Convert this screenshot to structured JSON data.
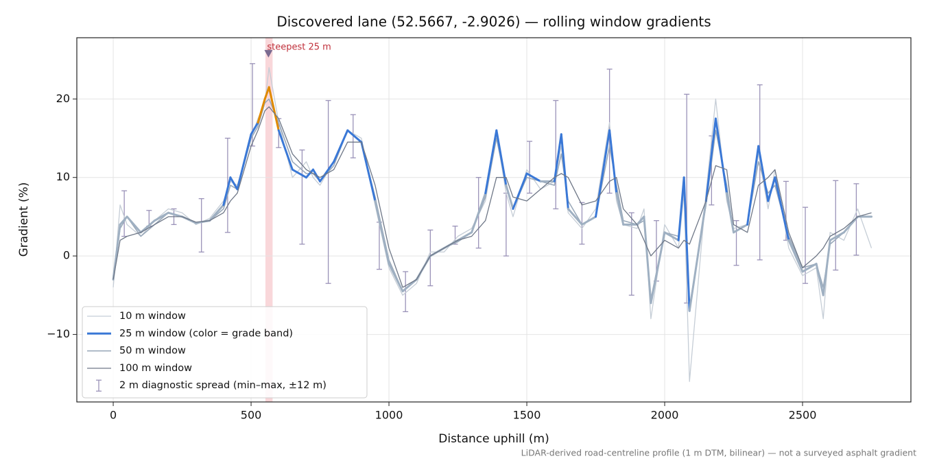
{
  "chart_data": {
    "type": "line",
    "title": "Discovered lane (52.5667, -2.9026) — rolling window gradients",
    "xlabel": "Distance uphill (m)",
    "ylabel": "Gradient (%)",
    "footnote": "LiDAR-derived road-centreline profile (1 m DTM, bilinear) — not a surveyed asphalt gradient",
    "xlim": [
      -132,
      2893
    ],
    "ylim": [
      -18.6,
      27.8
    ],
    "xticks": [
      0,
      500,
      1000,
      1500,
      2000,
      2500
    ],
    "yticks": [
      {
        "value": -10,
        "label": "−10"
      },
      0,
      10,
      20
    ],
    "grid": true,
    "legend": "lower left",
    "x": [
      0,
      25,
      50,
      100,
      150,
      200,
      250,
      300,
      350,
      400,
      425,
      450,
      500,
      525,
      550,
      565,
      600,
      650,
      700,
      725,
      750,
      800,
      850,
      900,
      950,
      1000,
      1050,
      1100,
      1150,
      1200,
      1250,
      1300,
      1350,
      1390,
      1425,
      1450,
      1500,
      1550,
      1600,
      1625,
      1650,
      1700,
      1750,
      1800,
      1825,
      1850,
      1900,
      1925,
      1950,
      2000,
      2050,
      2070,
      2090,
      2150,
      2185,
      2225,
      2250,
      2300,
      2340,
      2375,
      2400,
      2450,
      2500,
      2550,
      2575,
      2600,
      2650,
      2700,
      2750
    ],
    "series": [
      {
        "name": "10 m window",
        "color": "#c5cdd6",
        "width": 1.3,
        "values": [
          -4,
          6.5,
          4,
          2.5,
          4.5,
          6,
          5.5,
          4,
          4.8,
          7,
          9.5,
          9,
          15,
          17.5,
          19.5,
          24,
          17,
          10,
          12,
          10,
          9,
          12,
          16,
          15,
          6.5,
          -1.5,
          -5,
          -3.5,
          0.5,
          0.5,
          2.5,
          3.5,
          7,
          15.5,
          8,
          5,
          11,
          8.5,
          9.5,
          14,
          5.5,
          3.5,
          6,
          17,
          7,
          4,
          3.5,
          6,
          -8,
          4,
          1,
          8,
          -16,
          8,
          20,
          7,
          3.5,
          4,
          13,
          6,
          11,
          1,
          -2.5,
          -1.5,
          -8,
          3,
          2,
          6,
          1
        ]
      },
      {
        "name": "25 m window (color = grade band)",
        "color": "#3a78d6",
        "base_color": "#9fb0c2",
        "width": 3,
        "grade_bands": [
          {
            "min": 10,
            "color": "#3a78d6"
          },
          {
            "min": 20,
            "color": "#e08a00"
          }
        ],
        "values": [
          -3,
          4,
          5,
          3,
          4.5,
          5.5,
          5,
          4.2,
          4.5,
          6.5,
          10,
          8.5,
          15.5,
          17,
          20,
          21.5,
          16,
          11,
          10,
          11,
          9.5,
          12,
          16,
          14.5,
          7,
          -1,
          -4.5,
          -3,
          0,
          1,
          2,
          3,
          8,
          16,
          9,
          6,
          10.5,
          9.5,
          9.5,
          15.5,
          6,
          4,
          5,
          16,
          8,
          4,
          4,
          5,
          -6,
          3,
          2,
          10,
          -7,
          7,
          17.5,
          8,
          3,
          4,
          14,
          7,
          10,
          2,
          -2,
          -1,
          -5,
          2,
          3,
          5,
          5
        ]
      },
      {
        "name": "50 m window",
        "color": "#9aa9ba",
        "width": 1.6,
        "values": [
          -2.5,
          3.5,
          5,
          2.5,
          4,
          5.5,
          5,
          4.2,
          4.5,
          6,
          9,
          8.5,
          15,
          16.5,
          19.5,
          20,
          17,
          12,
          10.5,
          10.5,
          9.5,
          11.5,
          16,
          14.5,
          7.5,
          -0.5,
          -4.5,
          -3,
          0,
          1,
          1.8,
          3,
          7.5,
          15,
          9,
          6,
          10,
          9.5,
          9,
          13,
          7,
          4,
          5,
          14,
          9,
          4.5,
          4,
          4.5,
          -5.5,
          3,
          2.5,
          9,
          -6.5,
          6.5,
          16,
          9,
          3,
          4,
          12,
          8,
          9,
          2.5,
          -1.5,
          -1,
          -4,
          1.5,
          3,
          5,
          5
        ]
      },
      {
        "name": "100 m window",
        "color": "#6e7787",
        "width": 1.3,
        "values": [
          -3,
          2,
          2.5,
          3,
          4,
          5,
          5,
          4.3,
          4.5,
          5.5,
          7,
          8,
          14,
          16,
          18.5,
          19,
          17.5,
          13,
          11,
          10.5,
          10,
          11,
          14.5,
          14.5,
          9,
          1,
          -4,
          -3,
          0,
          1,
          2,
          2.5,
          4.5,
          10,
          10,
          7.5,
          7,
          8.5,
          10,
          10.5,
          10,
          6.5,
          7,
          9.5,
          10,
          6,
          4,
          2,
          0,
          2,
          1,
          2,
          1.5,
          7,
          11.5,
          11,
          4,
          3,
          9,
          10,
          11,
          3,
          -1.5,
          0,
          1,
          2.5,
          3.5,
          5,
          5.5
        ]
      }
    ],
    "spread": {
      "name": "2 m diagnostic spread (min–max, ±12 m)",
      "color": "#9a92b8",
      "x": [
        40,
        130,
        220,
        320,
        415,
        505,
        600,
        685,
        780,
        870,
        965,
        1060,
        1150,
        1240,
        1325,
        1425,
        1510,
        1605,
        1700,
        1800,
        1880,
        1970,
        2080,
        2170,
        2260,
        2345,
        2440,
        2510,
        2620,
        2695
      ],
      "low": [
        2.5,
        3.8,
        4,
        0.5,
        3,
        14,
        13.8,
        1.5,
        -3.5,
        12.5,
        -1.7,
        -7.1,
        -3.8,
        1.5,
        1,
        0,
        8,
        6,
        1.5,
        8,
        -5,
        -3.2,
        -6,
        6.5,
        -1.2,
        -0.5,
        2,
        -3.5,
        -1.8,
        0.1
      ],
      "high": [
        8.3,
        5.8,
        6,
        7.3,
        15,
        24.5,
        17.5,
        13.5,
        19.8,
        18,
        4.3,
        -2,
        3.3,
        3.8,
        10,
        8,
        14.6,
        19.8,
        6.8,
        23.8,
        5.5,
        4.5,
        20.6,
        15.3,
        4.5,
        21.8,
        9.5,
        6.2,
        9.6,
        9.2
      ]
    },
    "highlight": [
      552,
      578
    ],
    "highlight_color": "#f4b6bc",
    "annotation": {
      "text": "steepest 25 m",
      "x": 563,
      "y": 25.8,
      "color": "#c0303b",
      "marker_color": "#7a6a90"
    }
  }
}
